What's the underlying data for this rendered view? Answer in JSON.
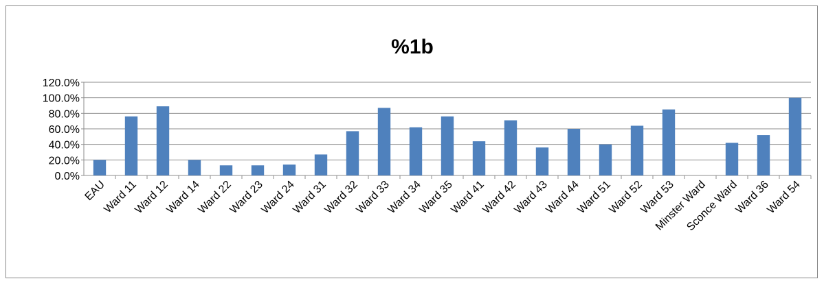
{
  "chart_data": {
    "type": "bar",
    "title": "%1b",
    "categories": [
      "EAU",
      "Ward 11",
      "Ward 12",
      "Ward 14",
      "Ward 22",
      "Ward 23",
      "Ward 24",
      "Ward 31",
      "Ward 32",
      "Ward 33",
      "Ward 34",
      "Ward 35",
      "Ward 41",
      "Ward 42",
      "Ward 43",
      "Ward 44",
      "Ward 51",
      "Ward 52",
      "Ward 53",
      "Minster Ward",
      "Sconce Ward",
      "Ward 36",
      "Ward 54"
    ],
    "values": [
      20,
      76,
      89,
      20,
      13,
      13,
      14,
      27,
      57,
      87,
      62,
      76,
      44,
      71,
      36,
      60,
      40,
      64,
      85,
      0,
      42,
      52,
      100
    ],
    "color": "#4f81bd",
    "ylim": [
      0,
      120
    ],
    "yticks": [
      {
        "value": 0,
        "label": "0.0%"
      },
      {
        "value": 20,
        "label": "20.0%"
      },
      {
        "value": 40,
        "label": "40.0%"
      },
      {
        "value": 60,
        "label": "60.0%"
      },
      {
        "value": 80,
        "label": "80.0%"
      },
      {
        "value": 100,
        "label": "100.0%"
      },
      {
        "value": 120,
        "label": "120.0%"
      }
    ],
    "grid": true
  }
}
